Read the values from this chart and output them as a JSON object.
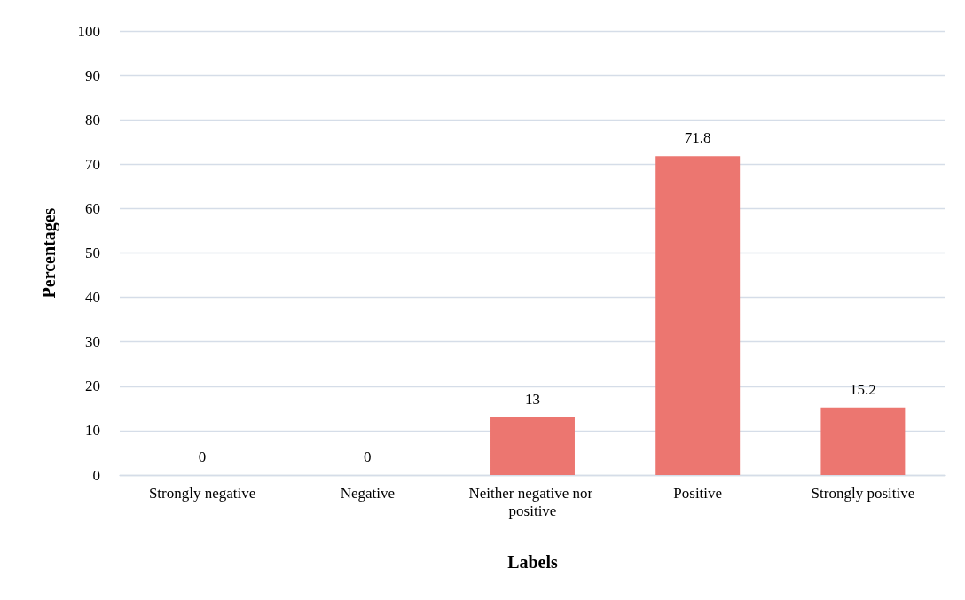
{
  "chart_data": {
    "type": "bar",
    "xlabel": "Labels",
    "ylabel": "Percentages",
    "categories": [
      "Strongly negative",
      "Negative",
      "Neither negative nor positive",
      "Positive",
      "Strongly positive"
    ],
    "values": [
      0,
      0,
      13,
      71.8,
      15.2
    ],
    "color": "#ec7670",
    "ylim": [
      0,
      100
    ],
    "yticks": [
      0,
      10,
      20,
      30,
      40,
      50,
      60,
      70,
      80,
      90,
      100
    ],
    "grid": "y",
    "data_labels": true
  }
}
